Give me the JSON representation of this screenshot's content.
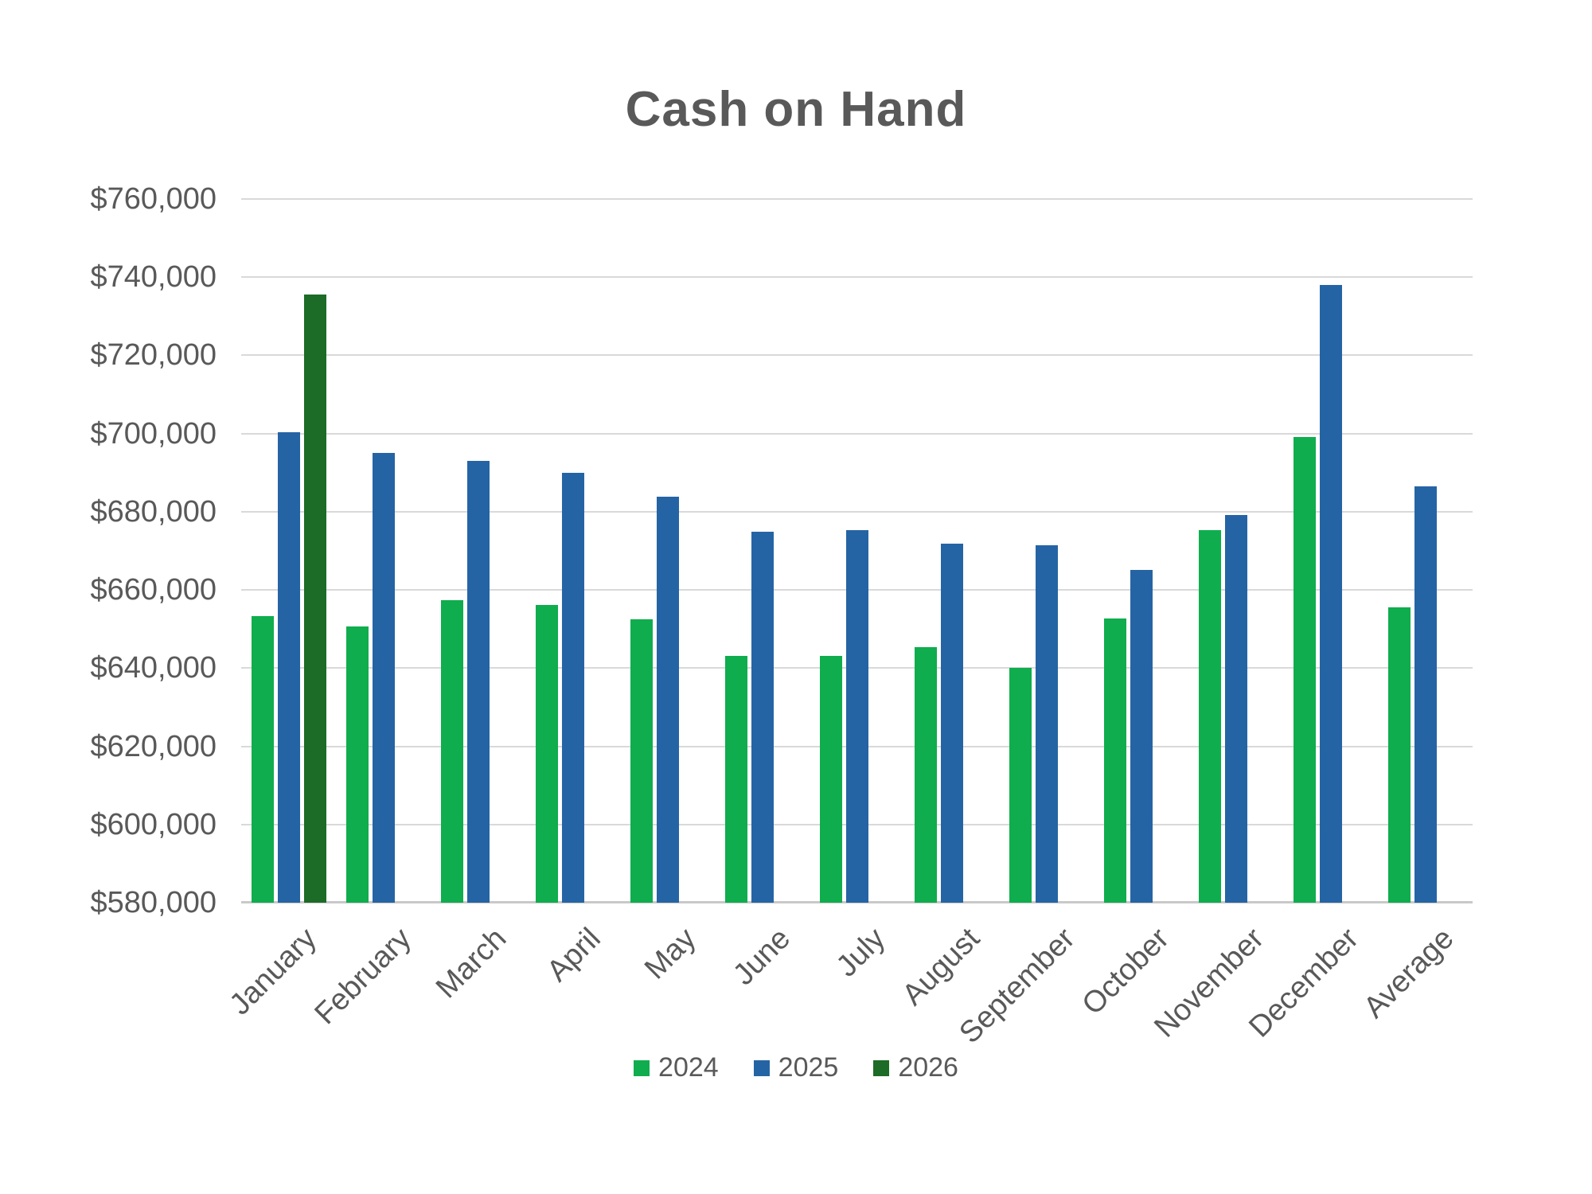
{
  "chart_data": {
    "type": "bar",
    "title": "Cash on Hand",
    "categories": [
      "January",
      "February",
      "March",
      "April",
      "May",
      "June",
      "July",
      "August",
      "September",
      "October",
      "November",
      "December",
      "Average"
    ],
    "series": [
      {
        "name": "2024",
        "color": "#0FAD4D",
        "values": [
          653400,
          650600,
          657300,
          656100,
          652400,
          643100,
          643200,
          645400,
          640000,
          652600,
          675300,
          699200,
          655600
        ]
      },
      {
        "name": "2025",
        "color": "#2564A4",
        "values": [
          700300,
          695100,
          693100,
          690000,
          683900,
          674900,
          675300,
          671900,
          671500,
          665200,
          679200,
          738100,
          686500
        ]
      },
      {
        "name": "2026",
        "color": "#1C6B26",
        "values": [
          735500,
          null,
          null,
          null,
          null,
          null,
          null,
          null,
          null,
          null,
          null,
          null,
          null
        ]
      }
    ],
    "y_axis": {
      "min": 580000,
      "max": 760000,
      "step": 20000,
      "tick_labels": [
        "$760,000",
        "$740,000",
        "$720,000",
        "$700,000",
        "$680,000",
        "$660,000",
        "$640,000",
        "$620,000",
        "$600,000",
        "$580,000"
      ]
    },
    "legend": [
      "2024",
      "2025",
      "2026"
    ],
    "legend_position": "bottom",
    "grid": "horizontal",
    "colors": {
      "gridline": "#d9d9d9",
      "axis_line": "#c9c9c9",
      "text": "#595959"
    }
  }
}
